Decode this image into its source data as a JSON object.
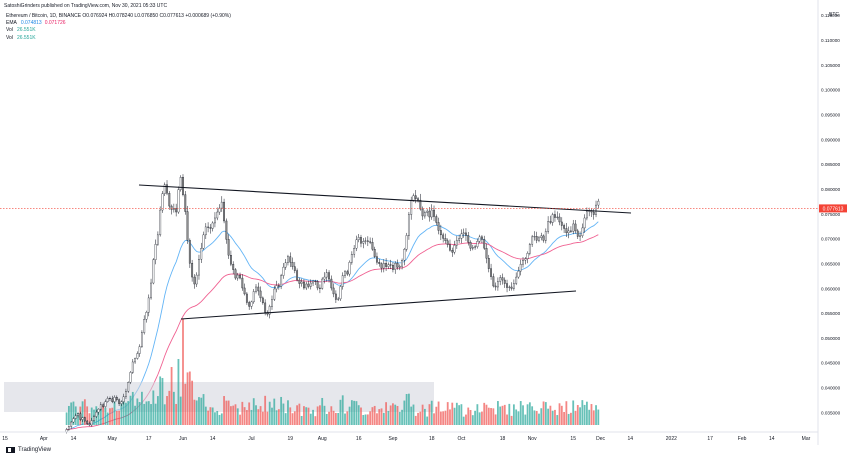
{
  "header": {
    "publish_line": "SatoshiGrinders published on TradingView.com, Nov 30, 2021 05:33 UTC",
    "symbol_line": "Ethereum / Bitcoin, 1D, BINANCE",
    "ohlc": {
      "o": "O0.076924",
      "h": "H0.078240",
      "l": "L0.076850",
      "c": "C0.077613",
      "chg": "+0.000689 (+0.90%)"
    },
    "ema_label": "EMA",
    "ema_fast": "0.074813",
    "ema_slow": "0.071726",
    "vol1_label": "Vol",
    "vol1_value": "26.551K",
    "vol2_label": "Vol",
    "vol2_value": "26.551K"
  },
  "footer": {
    "brand": "TradingView"
  },
  "colors": {
    "candle_up": "#ffffff",
    "candle_down": "#8f8f8f",
    "candle_border": "#131722",
    "ema_fast": "#64b5f6",
    "ema_slow": "#f06292",
    "vol_up": "#26a69a",
    "vol_down": "#ef5350",
    "trendline": "#131722",
    "price_line": "#f44336",
    "price_tag": "#f44336",
    "vrvp_box": "#d1d4dc"
  },
  "chart_data": {
    "type": "candlestick",
    "currency": "BTC",
    "last_price_label": "0.077613",
    "y_ticks": [
      "0.115000",
      "0.110000",
      "0.105000",
      "0.100000",
      "0.095000",
      "0.090000",
      "0.085000",
      "0.080000",
      "0.075000",
      "0.070000",
      "0.065000",
      "0.060000",
      "0.055000",
      "0.050000",
      "0.045000",
      "0.040000",
      "0.035000"
    ],
    "ylim": [
      0.0325,
      0.1165
    ],
    "x_ticks": [
      "15",
      "Apr",
      "14",
      "May",
      "17",
      "Jun",
      "14",
      "Jul",
      "19",
      "Aug",
      "16",
      "Sep",
      "18",
      "Oct",
      "18",
      "Nov",
      "15",
      "Dec",
      "14",
      "2022",
      "17",
      "Feb",
      "14",
      "Mar"
    ],
    "x_tick_days": [
      0,
      17,
      30,
      47,
      63,
      78,
      91,
      108,
      125,
      139,
      155,
      170,
      187,
      200,
      218,
      231,
      249,
      261,
      274,
      292,
      309,
      323,
      336,
      351
    ],
    "date_range": [
      "2021-03-15",
      "2022-03-11"
    ],
    "last_candle_day": 260,
    "close": [
      0.0316,
      0.0322,
      0.0331,
      0.0338,
      0.0344,
      0.0348,
      0.0336,
      0.034,
      0.0333,
      0.0328,
      0.0325,
      0.0334,
      0.0342,
      0.0351,
      0.0357,
      0.0366,
      0.0362,
      0.0372,
      0.0379,
      0.0378,
      0.0372,
      0.0381,
      0.0376,
      0.0368,
      0.0372,
      0.0382,
      0.0393,
      0.0411,
      0.0431,
      0.0452,
      0.0459,
      0.0469,
      0.0483,
      0.0511,
      0.0538,
      0.0552,
      0.0581,
      0.0611,
      0.0658,
      0.0689,
      0.0708,
      0.0758,
      0.0791,
      0.0809,
      0.0792,
      0.0766,
      0.0759,
      0.0761,
      0.0754,
      0.0799,
      0.0824,
      0.0789,
      0.0755,
      0.0697,
      0.0651,
      0.0623,
      0.0609,
      0.0627,
      0.0659,
      0.0681,
      0.0708,
      0.0724,
      0.0723,
      0.0721,
      0.0732,
      0.0742,
      0.0754,
      0.0762,
      0.0774,
      0.0736,
      0.0699,
      0.0667,
      0.0649,
      0.0638,
      0.0621,
      0.0627,
      0.0621,
      0.0601,
      0.0589,
      0.0572,
      0.0564,
      0.0573,
      0.0594,
      0.0603,
      0.0595,
      0.0581,
      0.0571,
      0.0552,
      0.0548,
      0.0564,
      0.0578,
      0.0599,
      0.0606,
      0.0604,
      0.0626,
      0.0643,
      0.0652,
      0.0664,
      0.0653,
      0.0644,
      0.0636,
      0.0617,
      0.061,
      0.0613,
      0.0601,
      0.0609,
      0.0604,
      0.0611,
      0.0615,
      0.0614,
      0.0601,
      0.06,
      0.0619,
      0.0623,
      0.0632,
      0.0619,
      0.0601,
      0.0589,
      0.0578,
      0.0579,
      0.0604,
      0.0626,
      0.0634,
      0.0629,
      0.0653,
      0.0669,
      0.0681,
      0.0698,
      0.0703,
      0.0691,
      0.0695,
      0.0696,
      0.0694,
      0.0693,
      0.0679,
      0.0664,
      0.0653,
      0.065,
      0.0641,
      0.0651,
      0.0644,
      0.0648,
      0.0647,
      0.0638,
      0.0651,
      0.0643,
      0.0645,
      0.0657,
      0.0679,
      0.0707,
      0.0749,
      0.0778,
      0.0787,
      0.0781,
      0.0778,
      0.076,
      0.0746,
      0.0753,
      0.0756,
      0.0744,
      0.0758,
      0.0745,
      0.0733,
      0.0717,
      0.0708,
      0.0701,
      0.0696,
      0.0688,
      0.0677,
      0.0673,
      0.0687,
      0.0697,
      0.0701,
      0.071,
      0.0712,
      0.0707,
      0.0693,
      0.0681,
      0.0683,
      0.0684,
      0.0695,
      0.0704,
      0.0699,
      0.0681,
      0.0661,
      0.064,
      0.0624,
      0.0605,
      0.0603,
      0.0614,
      0.0622,
      0.0617,
      0.061,
      0.0602,
      0.0603,
      0.06,
      0.061,
      0.0623,
      0.0635,
      0.0649,
      0.0657,
      0.066,
      0.0671,
      0.0689,
      0.0704,
      0.0705,
      0.0697,
      0.0702,
      0.0706,
      0.0697,
      0.0715,
      0.0735,
      0.0733,
      0.0749,
      0.0743,
      0.0744,
      0.0734,
      0.0727,
      0.0721,
      0.0712,
      0.0716,
      0.0715,
      0.073,
      0.0716,
      0.0705,
      0.0706,
      0.0722,
      0.0742,
      0.0755,
      0.0757,
      0.0754,
      0.0749,
      0.0768,
      0.0776
    ]
  }
}
